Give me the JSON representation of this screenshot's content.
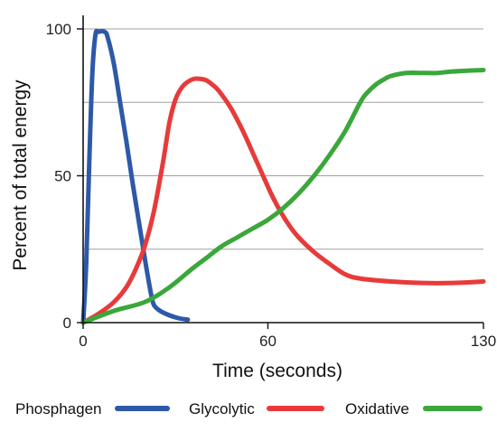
{
  "chart_data": {
    "type": "line",
    "title": "",
    "xlabel": "Time (seconds)",
    "ylabel": "Percent of total energy",
    "xlim": [
      0,
      130
    ],
    "ylim": [
      0,
      100
    ],
    "xticks": [
      0,
      60,
      130
    ],
    "yticks": [
      0,
      50,
      100
    ],
    "grid": "horizontal",
    "legend_position": "bottom",
    "series": [
      {
        "name": "Phosphagen",
        "color": "#2e59a8",
        "x": [
          0,
          1,
          2,
          3,
          4,
          5,
          7,
          8,
          10,
          12,
          14,
          16,
          18,
          20,
          22,
          23,
          25,
          28,
          31,
          34
        ],
        "y": [
          0,
          20,
          55,
          85,
          98,
          99,
          99,
          97,
          88,
          75,
          62,
          48,
          35,
          22,
          10,
          6,
          4,
          2.5,
          1.5,
          1
        ]
      },
      {
        "name": "Glycolytic",
        "color": "#e83a3a",
        "x": [
          0,
          5,
          10,
          14,
          17,
          20,
          23,
          26,
          28,
          30,
          32,
          34,
          36,
          38,
          40,
          42,
          44,
          48,
          52,
          55,
          58,
          61,
          64,
          67,
          70,
          75,
          80,
          85,
          90,
          100,
          110,
          120,
          130
        ],
        "y": [
          0,
          3,
          7,
          12,
          18,
          26,
          38,
          55,
          68,
          76,
          80,
          82,
          83,
          83,
          82.5,
          81,
          79,
          73,
          65,
          58,
          51,
          44,
          38,
          33,
          29,
          24,
          20,
          16.5,
          15,
          14,
          13.5,
          13.5,
          14
        ]
      },
      {
        "name": "Oxidative",
        "color": "#3aa73a",
        "x": [
          0,
          10,
          20,
          28,
          35,
          40,
          45,
          50,
          55,
          60,
          65,
          70,
          75,
          80,
          85,
          90,
          92,
          95,
          98,
          100,
          105,
          110,
          115,
          120,
          130
        ],
        "y": [
          0,
          4,
          7,
          12,
          18,
          22,
          26,
          29,
          32,
          35,
          39,
          44,
          50,
          57,
          65,
          75,
          78,
          81,
          83,
          84,
          85,
          85,
          85,
          85.5,
          86
        ]
      }
    ]
  }
}
